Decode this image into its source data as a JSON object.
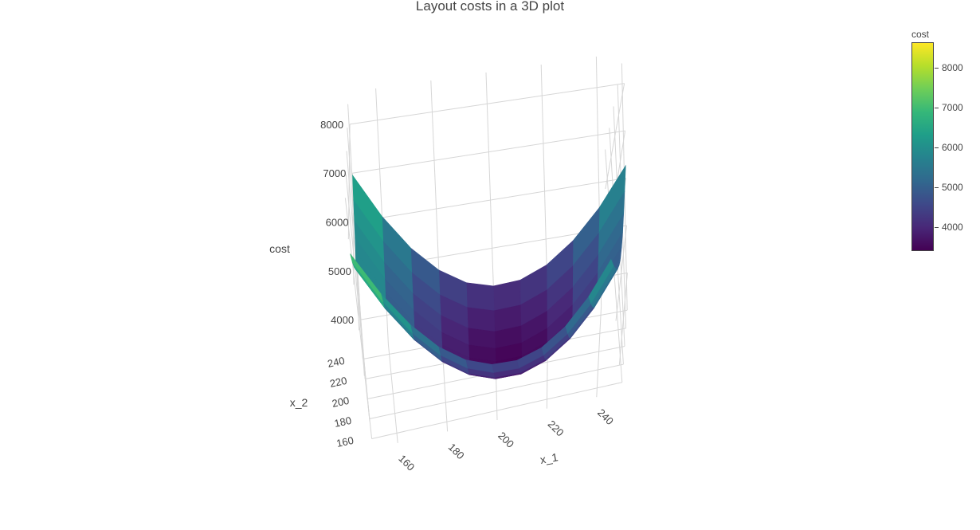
{
  "title": "Layout costs in a 3D plot",
  "chart_data": {
    "type": "surface",
    "title": "Layout costs in a 3D plot",
    "x_axis_label": "x_1",
    "y_axis_label": "x_2",
    "z_axis_label": "cost",
    "x_ticks": [
      "160",
      "180",
      "200",
      "220",
      "240"
    ],
    "y_ticks": [
      "160",
      "180",
      "200",
      "220",
      "240"
    ],
    "z_ticks": [
      "4000",
      "5000",
      "6000",
      "7000",
      "8000"
    ],
    "x": [
      150,
      160,
      170,
      180,
      190,
      200,
      210,
      220,
      230,
      240,
      250
    ],
    "y": [
      150,
      160,
      170,
      180,
      190,
      200,
      210,
      220,
      230,
      240,
      250
    ],
    "colorscale": "viridis",
    "colorscale_stops": [
      "#440154",
      "#482878",
      "#3e4989",
      "#31688e",
      "#26828e",
      "#1f9e89",
      "#35b779",
      "#6ece58",
      "#b5de2b",
      "#fde725"
    ],
    "colorbar": {
      "title": "cost",
      "ticks": [
        "4000",
        "5000",
        "6000",
        "7000",
        "8000"
      ],
      "cmin": 3400,
      "cmax": 8650
    },
    "surface_peak_cost": 8650,
    "surface_min_cost": 3400
  }
}
